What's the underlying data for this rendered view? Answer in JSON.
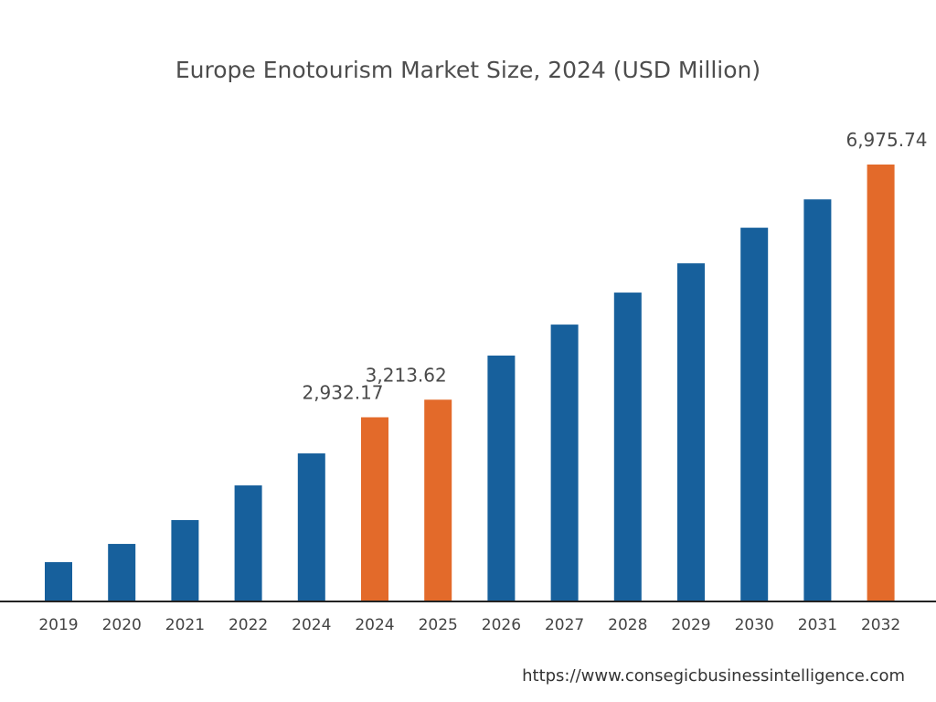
{
  "chart_data": {
    "type": "bar",
    "title": "Europe Enotourism Market Size, 2024 (USD Million)",
    "xlabel": "",
    "ylabel": "",
    "categories": [
      "2019",
      "2020",
      "2021",
      "2022",
      "2024",
      "2024",
      "2025",
      "2026",
      "2027",
      "2028",
      "2029",
      "2030",
      "2031",
      "2032"
    ],
    "values": [
      614,
      906,
      1287,
      1842,
      2354,
      2932.17,
      3213.62,
      3919,
      4415,
      4927,
      5395,
      5965,
      6418,
      6975.74
    ],
    "data_labels": {
      "5": "2,932.17",
      "6": "3,213.62",
      "13": "6,975.74"
    },
    "highlighted": [
      5,
      6,
      13
    ],
    "colors": {
      "default": "#17609c",
      "highlight": "#e36a2a",
      "axis": "#222222"
    },
    "ylim": [
      0,
      6975.74
    ],
    "grid": false,
    "legend": "none"
  },
  "source": "https://www.consegicbusinessintelligence.com"
}
